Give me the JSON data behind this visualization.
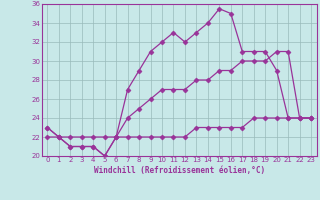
{
  "xlabel": "Windchill (Refroidissement éolien,°C)",
  "background_color": "#c8e8e8",
  "line_color": "#993399",
  "grid_color": "#99bbbb",
  "xlim": [
    -0.5,
    23.5
  ],
  "ylim": [
    20,
    36
  ],
  "yticks": [
    20,
    22,
    24,
    26,
    28,
    30,
    32,
    34,
    36
  ],
  "xticks": [
    0,
    1,
    2,
    3,
    4,
    5,
    6,
    7,
    8,
    9,
    10,
    11,
    12,
    13,
    14,
    15,
    16,
    17,
    18,
    19,
    20,
    21,
    22,
    23
  ],
  "series1_x": [
    0,
    1,
    2,
    3,
    4,
    5,
    6,
    7,
    8,
    9,
    10,
    11,
    12,
    13,
    14,
    15,
    16,
    17,
    18,
    19,
    20,
    21,
    22,
    23
  ],
  "series1_y": [
    23,
    22,
    21,
    21,
    21,
    20,
    22,
    27,
    29,
    31,
    32,
    33,
    32,
    33,
    34,
    35.5,
    35,
    31,
    31,
    31,
    29,
    24,
    24,
    24
  ],
  "series2_x": [
    0,
    1,
    2,
    3,
    4,
    5,
    6,
    7,
    8,
    9,
    10,
    11,
    12,
    13,
    14,
    15,
    16,
    17,
    18,
    19,
    20,
    21,
    22,
    23
  ],
  "series2_y": [
    23,
    22,
    21,
    21,
    21,
    20,
    22,
    24,
    25,
    26,
    27,
    27,
    27,
    28,
    28,
    29,
    29,
    30,
    30,
    30,
    31,
    31,
    24,
    24
  ],
  "series3_x": [
    0,
    1,
    2,
    3,
    4,
    5,
    6,
    7,
    8,
    9,
    10,
    11,
    12,
    13,
    14,
    15,
    16,
    17,
    18,
    19,
    20,
    21,
    22,
    23
  ],
  "series3_y": [
    22,
    22,
    22,
    22,
    22,
    22,
    22,
    22,
    22,
    22,
    22,
    22,
    22,
    23,
    23,
    23,
    23,
    23,
    24,
    24,
    24,
    24,
    24,
    24
  ]
}
